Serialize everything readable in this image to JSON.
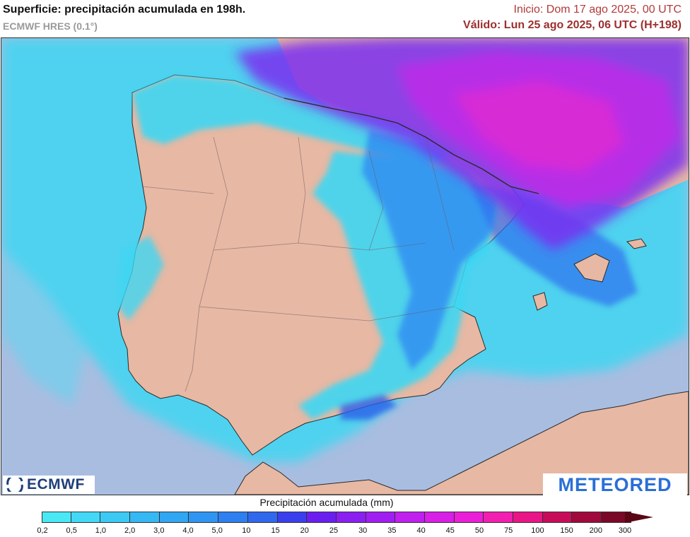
{
  "header": {
    "title": "Superficie: precipitación acumulada en 198h.",
    "model": "ECMWF HRES (0.1°)",
    "start": "Inicio: Dom 17 ago 2025, 00 UTC",
    "valid": "Válido: Lun 25 ago 2025, 06 UTC (H+198)"
  },
  "map": {
    "sea_color": "#a9bde0",
    "land_color": "#e7b8a3",
    "precip_low_color": "#3fe2f5",
    "precip_mid_color": "#2f86f2",
    "precip_high_color": "#c02be8",
    "border_color": "#333333"
  },
  "logos": {
    "ecmwf": "ECMWF",
    "meteored": "METEORED"
  },
  "legend": {
    "title": "Precipitación acumulada (mm)",
    "ticks": [
      "0,2",
      "0,5",
      "1,0",
      "2,0",
      "3,0",
      "4,0",
      "5,0",
      "10",
      "15",
      "20",
      "25",
      "30",
      "35",
      "40",
      "45",
      "50",
      "75",
      "100",
      "150",
      "200",
      "300"
    ],
    "colors": [
      "#4ae8f5",
      "#43d8f6",
      "#3ccaf5",
      "#36b8f4",
      "#31a6f3",
      "#2f95f2",
      "#2e7ff0",
      "#3068ee",
      "#3a3fee",
      "#6a1ff0",
      "#8a1ff2",
      "#a11ef2",
      "#c01ff0",
      "#d91ee8",
      "#ec1fd8",
      "#f31fb0",
      "#ea1687",
      "#c80c5a",
      "#a0093b",
      "#7a0827"
    ]
  }
}
